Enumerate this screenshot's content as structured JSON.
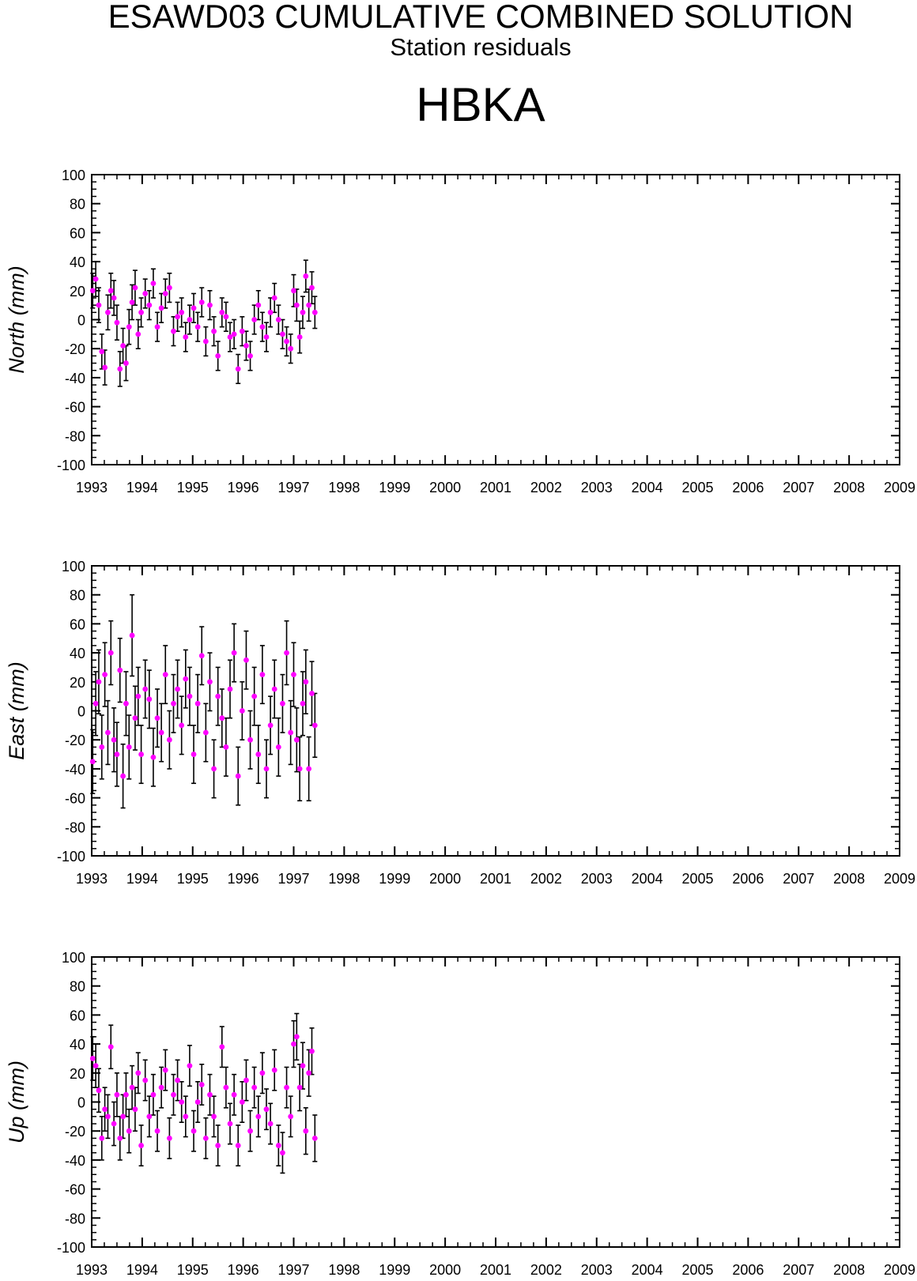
{
  "figure": {
    "title": "ESAWD03 CUMULATIVE COMBINED SOLUTION",
    "subtitle": "Station residuals",
    "station": "HBKA"
  },
  "colors": {
    "marker": "#ff00ff",
    "errorbar": "#000000",
    "axis": "#000000"
  },
  "chart_data": [
    {
      "type": "scatter",
      "ylabel": "North (mm)",
      "xlim": [
        1993,
        2009
      ],
      "ylim": [
        -100,
        100
      ],
      "x_ticks": [
        "1993",
        "1994",
        "1995",
        "1996",
        "1997",
        "1998",
        "1999",
        "2000",
        "2001",
        "2002",
        "2003",
        "2004",
        "2005",
        "2006",
        "2007",
        "2008",
        "2009"
      ],
      "y_ticks": [
        "100",
        "80",
        "60",
        "40",
        "20",
        "0",
        "-20",
        "-40",
        "-60",
        "-80",
        "-100"
      ],
      "grid": false,
      "series": [
        {
          "x": [
            1993.02,
            1993.08,
            1993.14,
            1993.2,
            1993.26,
            1993.32,
            1993.38,
            1993.44,
            1993.5,
            1993.56,
            1993.62,
            1993.68,
            1993.74,
            1993.8,
            1993.86,
            1993.92,
            1993.98,
            1994.06,
            1994.14,
            1994.22,
            1994.3,
            1994.38,
            1994.46,
            1994.54,
            1994.62,
            1994.7,
            1994.78,
            1994.86,
            1994.94,
            1995.02,
            1995.1,
            1995.18,
            1995.26,
            1995.34,
            1995.42,
            1995.5,
            1995.58,
            1995.66,
            1995.74,
            1995.82,
            1995.9,
            1995.98,
            1996.06,
            1996.14,
            1996.22,
            1996.3,
            1996.38,
            1996.46,
            1996.54,
            1996.62,
            1996.7,
            1996.78,
            1996.86,
            1996.94,
            1997.0,
            1997.06,
            1997.12,
            1997.18,
            1997.24,
            1997.3,
            1997.36,
            1997.42
          ],
          "y": [
            20,
            28,
            10,
            -22,
            -33,
            5,
            20,
            15,
            -2,
            -34,
            -18,
            -30,
            -5,
            12,
            22,
            -10,
            5,
            18,
            10,
            25,
            -5,
            8,
            18,
            22,
            -8,
            2,
            5,
            -12,
            0,
            8,
            -5,
            12,
            -15,
            10,
            -8,
            -25,
            5,
            2,
            -12,
            -10,
            -34,
            -8,
            -18,
            -25,
            0,
            10,
            -5,
            -12,
            5,
            15,
            0,
            -10,
            -15,
            -20,
            20,
            10,
            -12,
            5,
            30,
            10,
            22,
            5
          ],
          "err": [
            12,
            12,
            12,
            12,
            12,
            12,
            12,
            12,
            12,
            12,
            12,
            12,
            12,
            12,
            12,
            10,
            10,
            10,
            10,
            10,
            10,
            10,
            10,
            10,
            10,
            10,
            10,
            10,
            10,
            10,
            10,
            10,
            10,
            10,
            10,
            10,
            10,
            10,
            10,
            10,
            10,
            10,
            10,
            10,
            10,
            10,
            10,
            10,
            10,
            10,
            10,
            10,
            10,
            10,
            11,
            11,
            11,
            11,
            11,
            11,
            11,
            11
          ]
        }
      ]
    },
    {
      "type": "scatter",
      "ylabel": "East (mm)",
      "xlim": [
        1993,
        2009
      ],
      "ylim": [
        -100,
        100
      ],
      "x_ticks": [
        "1993",
        "1994",
        "1995",
        "1996",
        "1997",
        "1998",
        "1999",
        "2000",
        "2001",
        "2002",
        "2003",
        "2004",
        "2005",
        "2006",
        "2007",
        "2008",
        "2009"
      ],
      "y_ticks": [
        "100",
        "80",
        "60",
        "40",
        "20",
        "0",
        "-20",
        "-40",
        "-60",
        "-80",
        "-100"
      ],
      "grid": false,
      "series": [
        {
          "x": [
            1993.02,
            1993.08,
            1993.14,
            1993.2,
            1993.26,
            1993.32,
            1993.38,
            1993.44,
            1993.5,
            1993.56,
            1993.62,
            1993.68,
            1993.74,
            1993.8,
            1993.86,
            1993.92,
            1993.98,
            1994.06,
            1994.14,
            1994.22,
            1994.3,
            1994.38,
            1994.46,
            1994.54,
            1994.62,
            1994.7,
            1994.78,
            1994.86,
            1994.94,
            1995.02,
            1995.1,
            1995.18,
            1995.26,
            1995.34,
            1995.42,
            1995.5,
            1995.58,
            1995.66,
            1995.74,
            1995.82,
            1995.9,
            1995.98,
            1996.06,
            1996.14,
            1996.22,
            1996.3,
            1996.38,
            1996.46,
            1996.54,
            1996.62,
            1996.7,
            1996.78,
            1996.86,
            1996.94,
            1997.0,
            1997.06,
            1997.12,
            1997.18,
            1997.24,
            1997.3,
            1997.36,
            1997.42
          ],
          "y": [
            -35,
            5,
            20,
            -25,
            25,
            -15,
            40,
            -20,
            -30,
            28,
            -45,
            5,
            -25,
            52,
            -5,
            10,
            -30,
            15,
            8,
            -32,
            -5,
            -15,
            25,
            -20,
            5,
            15,
            -10,
            22,
            10,
            -30,
            5,
            38,
            -15,
            20,
            -40,
            10,
            -5,
            -25,
            15,
            40,
            -45,
            0,
            35,
            -20,
            10,
            -30,
            25,
            -40,
            -10,
            15,
            -25,
            5,
            40,
            -15,
            25,
            -20,
            -40,
            5,
            20,
            -40,
            12,
            -10
          ],
          "err": [
            22,
            22,
            22,
            22,
            22,
            22,
            22,
            22,
            22,
            22,
            22,
            22,
            22,
            28,
            22,
            20,
            20,
            20,
            20,
            20,
            20,
            20,
            20,
            20,
            20,
            20,
            20,
            20,
            20,
            20,
            20,
            20,
            20,
            20,
            20,
            20,
            20,
            20,
            20,
            20,
            20,
            20,
            20,
            20,
            20,
            20,
            20,
            20,
            20,
            20,
            20,
            20,
            22,
            22,
            22,
            22,
            22,
            22,
            22,
            22,
            22,
            22
          ]
        }
      ]
    },
    {
      "type": "scatter",
      "ylabel": "Up (mm)",
      "xlim": [
        1993,
        2009
      ],
      "ylim": [
        -100,
        100
      ],
      "x_ticks": [
        "1993",
        "1994",
        "1995",
        "1996",
        "1997",
        "1998",
        "1999",
        "2000",
        "2001",
        "2002",
        "2003",
        "2004",
        "2005",
        "2006",
        "2007",
        "2008",
        "2009"
      ],
      "y_ticks": [
        "100",
        "80",
        "60",
        "40",
        "20",
        "0",
        "-20",
        "-40",
        "-60",
        "-80",
        "-100"
      ],
      "grid": false,
      "series": [
        {
          "x": [
            1993.02,
            1993.08,
            1993.14,
            1993.2,
            1993.26,
            1993.32,
            1993.38,
            1993.44,
            1993.5,
            1993.56,
            1993.62,
            1993.68,
            1993.74,
            1993.8,
            1993.86,
            1993.92,
            1993.98,
            1994.06,
            1994.14,
            1994.22,
            1994.3,
            1994.38,
            1994.46,
            1994.54,
            1994.62,
            1994.7,
            1994.78,
            1994.86,
            1994.94,
            1995.02,
            1995.1,
            1995.18,
            1995.26,
            1995.34,
            1995.42,
            1995.5,
            1995.58,
            1995.66,
            1995.74,
            1995.82,
            1995.9,
            1995.98,
            1996.06,
            1996.14,
            1996.22,
            1996.3,
            1996.38,
            1996.46,
            1996.54,
            1996.62,
            1996.7,
            1996.78,
            1996.86,
            1996.94,
            1997.0,
            1997.06,
            1997.12,
            1997.18,
            1997.24,
            1997.3,
            1997.36,
            1997.42
          ],
          "y": [
            30,
            25,
            8,
            -25,
            -5,
            -10,
            38,
            -15,
            5,
            -25,
            -10,
            5,
            -20,
            10,
            -5,
            20,
            -30,
            15,
            -10,
            5,
            -20,
            10,
            22,
            -25,
            5,
            15,
            0,
            -10,
            25,
            -20,
            0,
            12,
            -25,
            5,
            -10,
            -30,
            38,
            10,
            -15,
            5,
            -30,
            0,
            15,
            -20,
            10,
            -10,
            20,
            -5,
            -15,
            22,
            -30,
            -35,
            10,
            -10,
            40,
            45,
            10,
            25,
            -20,
            20,
            35,
            -25
          ],
          "err": [
            15,
            15,
            15,
            15,
            15,
            15,
            15,
            15,
            15,
            15,
            15,
            15,
            15,
            15,
            15,
            14,
            14,
            14,
            14,
            14,
            14,
            14,
            14,
            14,
            14,
            14,
            14,
            14,
            14,
            14,
            14,
            14,
            14,
            14,
            14,
            14,
            14,
            14,
            14,
            14,
            14,
            14,
            14,
            14,
            14,
            14,
            14,
            14,
            14,
            14,
            14,
            14,
            14,
            14,
            16,
            16,
            16,
            16,
            16,
            16,
            16,
            16
          ]
        }
      ]
    }
  ]
}
